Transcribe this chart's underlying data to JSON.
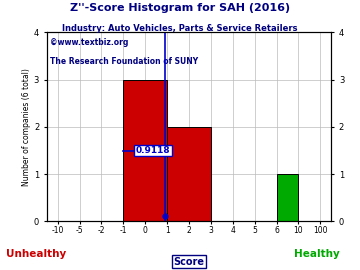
{
  "title": "Z''-Score Histogram for SAH (2016)",
  "subtitle": "Industry: Auto Vehicles, Parts & Service Retailers",
  "watermark1": "©www.textbiz.org",
  "watermark2": "The Research Foundation of SUNY",
  "xlabel": "Score",
  "ylabel": "Number of companies (6 total)",
  "unhealthy_label": "Unhealthy",
  "healthy_label": "Healthy",
  "bar_data": [
    {
      "bin_start_idx": 3,
      "bin_end_idx": 5,
      "height": 3,
      "color": "#cc0000"
    },
    {
      "bin_start_idx": 5,
      "bin_end_idx": 7,
      "height": 2,
      "color": "#cc0000"
    },
    {
      "bin_start_idx": 10,
      "bin_end_idx": 11,
      "height": 1,
      "color": "#00aa00"
    }
  ],
  "x_tick_positions": [
    0,
    1,
    2,
    3,
    4,
    5,
    6,
    7,
    8,
    9,
    10,
    11,
    12
  ],
  "x_tick_labels": [
    "-10",
    "-5",
    "-2",
    "-1",
    "0",
    "1",
    "2",
    "3",
    "4",
    "5",
    "6",
    "10",
    "100"
  ],
  "ylim": [
    0,
    4
  ],
  "y_ticks": [
    0,
    1,
    2,
    3,
    4
  ],
  "marker_x_idx": 4.9118,
  "marker_label": "0.9118",
  "marker_color": "#0000cc",
  "background_color": "#ffffff",
  "grid_color": "#bbbbbb",
  "title_color": "#000080",
  "subtitle_color": "#000080",
  "watermark1_color": "#000080",
  "watermark2_color": "#000080",
  "unhealthy_color": "#cc0000",
  "healthy_color": "#00aa00",
  "score_label_color": "#000080",
  "xlim": [
    -0.5,
    12.5
  ]
}
